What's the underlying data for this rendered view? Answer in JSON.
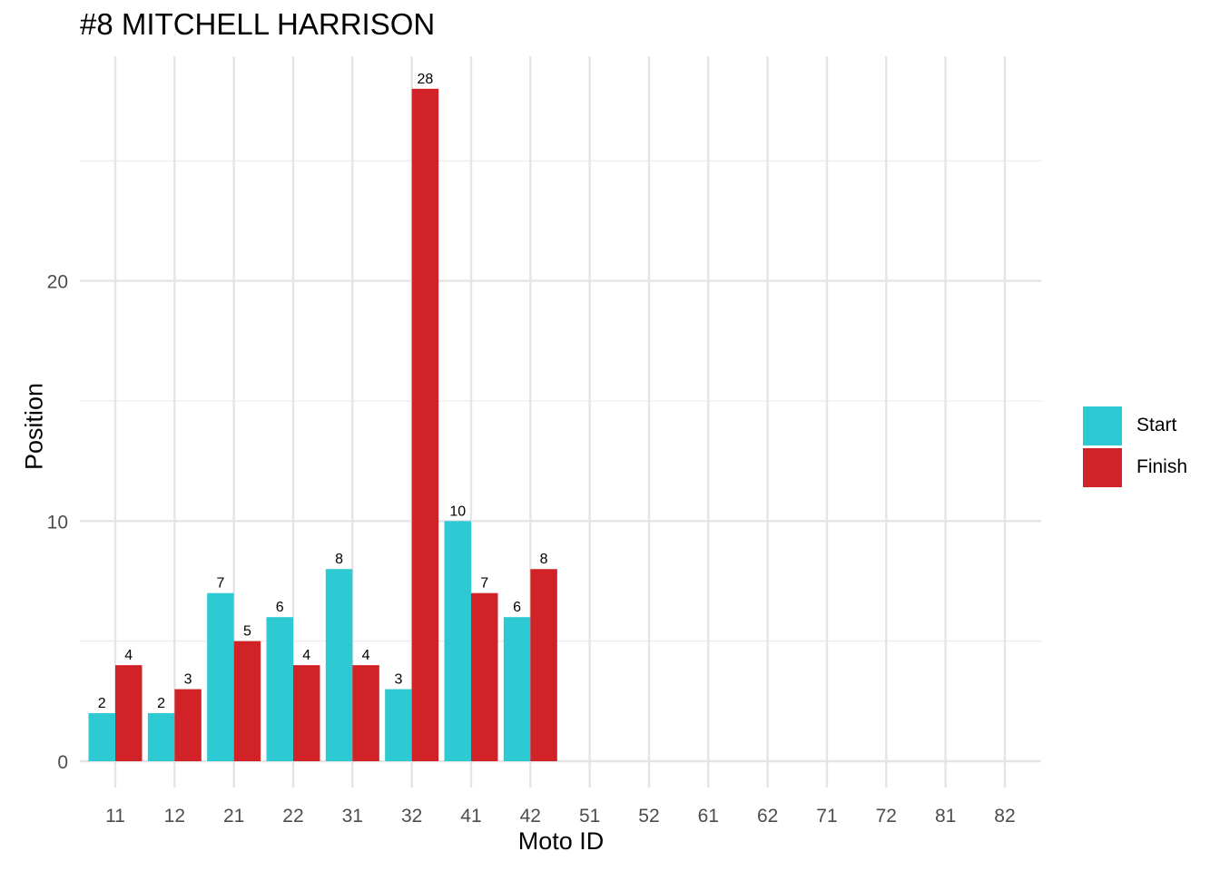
{
  "chart_data": {
    "type": "bar",
    "title": "#8 MITCHELL HARRISON",
    "xlabel": "Moto ID",
    "ylabel": "Position",
    "categories": [
      "11",
      "12",
      "21",
      "22",
      "31",
      "32",
      "41",
      "42",
      "51",
      "52",
      "61",
      "62",
      "71",
      "72",
      "81",
      "82"
    ],
    "series": [
      {
        "name": "Start",
        "color": "#2ECAD3",
        "values": [
          2,
          2,
          7,
          6,
          8,
          3,
          10,
          6,
          null,
          null,
          null,
          null,
          null,
          null,
          null,
          null
        ]
      },
      {
        "name": "Finish",
        "color": "#D12327",
        "values": [
          4,
          3,
          5,
          4,
          4,
          28,
          7,
          8,
          null,
          null,
          null,
          null,
          null,
          null,
          null,
          null
        ]
      }
    ],
    "ylim": [
      0,
      29.4
    ],
    "yticks": [
      0,
      10,
      20
    ],
    "grid": true,
    "legend": "right"
  }
}
